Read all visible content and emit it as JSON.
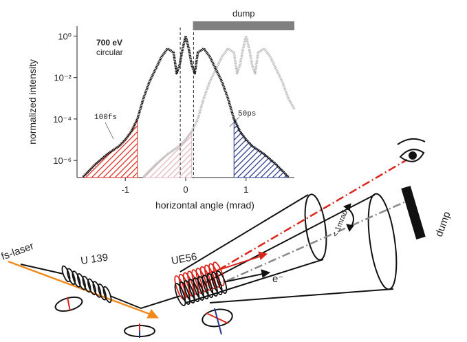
{
  "chart_data": {
    "type": "line",
    "y_label": "normalized intensity",
    "x_label": "horizontal angle (mrad)",
    "log_y": true,
    "xlim": [
      -1.8,
      1.8
    ],
    "ylim": [
      1.5e-07,
      3
    ],
    "xticks": [
      -1,
      0,
      1
    ],
    "yticks": [
      {
        "value": 1,
        "label": "10⁰"
      },
      {
        "value": 0.01,
        "label": "10⁻²"
      },
      {
        "value": 0.0001,
        "label": "10⁻⁴"
      },
      {
        "value": 1e-06,
        "label": "10⁻⁶"
      }
    ],
    "series": [
      {
        "color": "#111111",
        "x": [
          -1.7,
          -1.5,
          -1.3,
          -1.1,
          -1.0,
          -0.9,
          -0.8,
          -0.7,
          -0.6,
          -0.5,
          -0.4,
          -0.3,
          -0.2,
          -0.15,
          -0.1,
          -0.05,
          0,
          0.05,
          0.1,
          0.15,
          0.2,
          0.3,
          0.4,
          0.5,
          0.6,
          0.7,
          0.8,
          0.9,
          1.0,
          1.1,
          1.3,
          1.5,
          1.7
        ],
        "values": [
          1.6e-07,
          6.3e-07,
          2e-06,
          5e-06,
          1e-05,
          2.5e-05,
          0.0001,
          0.001,
          0.0063,
          0.025,
          0.1,
          0.25,
          0.16,
          0.016,
          0.04,
          0.25,
          1,
          0.25,
          0.04,
          0.016,
          0.16,
          0.25,
          0.1,
          0.025,
          0.0063,
          0.001,
          0.0001,
          2.5e-05,
          1e-05,
          5e-06,
          2e-06,
          6.3e-07,
          1.6e-07
        ]
      },
      {
        "color": "#bdbdbd",
        "x": [
          -0.7,
          -0.5,
          -0.3,
          -0.1,
          0,
          0.1,
          0.2,
          0.3,
          0.4,
          0.5,
          0.6,
          0.7,
          0.8,
          0.85,
          0.9,
          0.95,
          1.0,
          1.05,
          1.1,
          1.15,
          1.2,
          1.3,
          1.4,
          1.5,
          1.6,
          1.7,
          1.8
        ],
        "values": [
          1.6e-07,
          6.3e-07,
          2e-06,
          5e-06,
          1e-05,
          2.5e-05,
          0.0001,
          0.001,
          0.0063,
          0.025,
          0.1,
          0.25,
          0.16,
          0.016,
          0.04,
          0.25,
          1,
          0.25,
          0.04,
          0.016,
          0.16,
          0.25,
          0.1,
          0.025,
          0.0063,
          0.001,
          0.0003
        ]
      }
    ],
    "shaded_regions": [
      {
        "series": 0,
        "x": [
          -1.7,
          -0.8
        ],
        "color": "#d9261c"
      },
      {
        "series": 1,
        "x": [
          -0.7,
          0.1
        ],
        "color": "#e2b4bc"
      },
      {
        "series": 0,
        "x": [
          0.8,
          1.7
        ],
        "color": "#25358a"
      }
    ],
    "vlines": [
      -0.09,
      0.13
    ],
    "dump_band": {
      "x": [
        0.12,
        1.8
      ],
      "label": "dump"
    },
    "annotations": [
      "700 eV",
      "circular",
      "100fs",
      "50ps"
    ]
  },
  "diagram": {
    "laser": "fs-laser",
    "undulator_1": "U 139",
    "undulator_2": "UE56",
    "electron": "e⁻",
    "angle": "< 1mrad",
    "dump": "dump"
  }
}
